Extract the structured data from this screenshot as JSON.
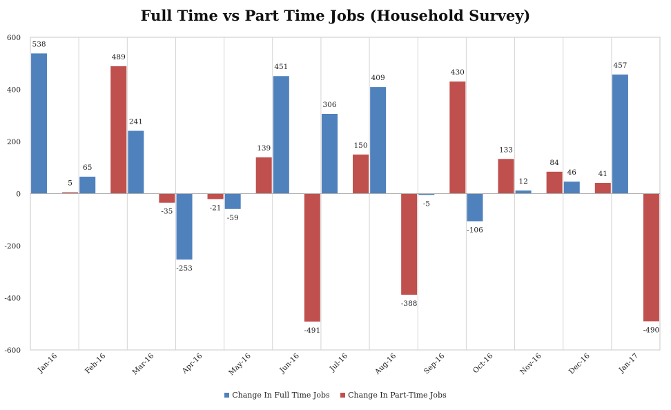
{
  "chart_data": {
    "type": "bar",
    "title": "Full Time vs Part Time Jobs (Household Survey)",
    "categories": [
      "Jan-16",
      "Feb-16",
      "Mar-16",
      "Apr-16",
      "May-16",
      "Jun-16",
      "Jul-16",
      "Aug-16",
      "Sep-16",
      "Oct-16",
      "Nov-16",
      "Dec-16",
      "Jan-17"
    ],
    "series": [
      {
        "name": "Change In Full Time Jobs",
        "color": "#4f81bd",
        "values": [
          538,
          65,
          241,
          -253,
          -59,
          451,
          306,
          409,
          -5,
          -106,
          12,
          46,
          457
        ]
      },
      {
        "name": "Change In Part-Time Jobs",
        "color": "#c0504d",
        "values": [
          5,
          489,
          -35,
          -21,
          139,
          -491,
          150,
          -388,
          430,
          133,
          84,
          41,
          -490
        ]
      }
    ],
    "yticks": [
      600,
      400,
      200,
      0,
      -200,
      -400,
      -600
    ],
    "ylim": [
      -600,
      600
    ],
    "xlabel": "",
    "ylabel": "",
    "grid": "vertical category separators",
    "legend_position": "bottom"
  }
}
